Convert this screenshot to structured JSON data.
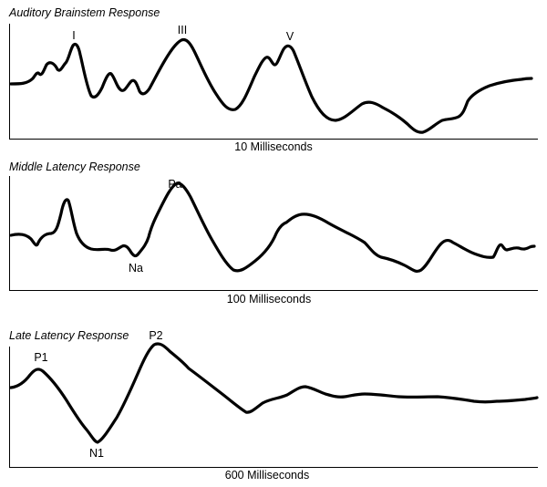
{
  "panels": [
    {
      "id": "abr",
      "title": "Auditory Brainstem Response",
      "caption": "10 Milliseconds",
      "peaks": [
        "I",
        "III",
        "V"
      ]
    },
    {
      "id": "mlr",
      "title": "Middle Latency Response",
      "caption": "100 Milliseconds",
      "peaks": [
        "Pa",
        "Na"
      ]
    },
    {
      "id": "llr",
      "title": "Late Latency Response",
      "caption": "600 Milliseconds",
      "peaks": [
        "P1",
        "P2",
        "N1"
      ]
    }
  ]
}
